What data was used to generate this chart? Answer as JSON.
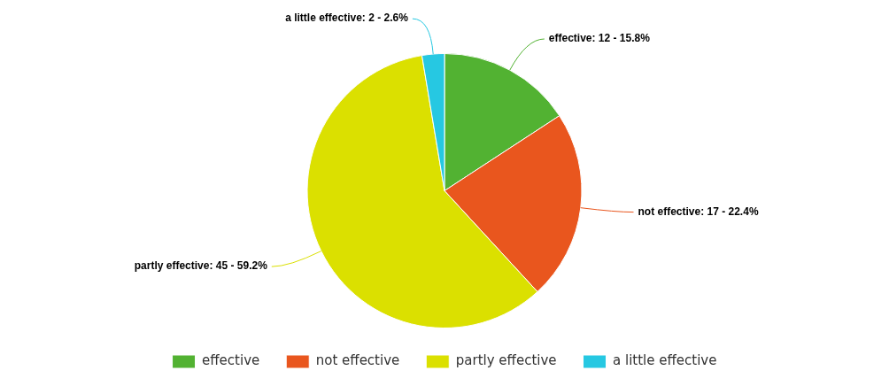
{
  "chart_data": {
    "type": "pie",
    "categories": [
      "effective",
      "not effective",
      "partly effective",
      "a little effective"
    ],
    "values": [
      12,
      17,
      45,
      2
    ],
    "colors": [
      "#52b232",
      "#e9561e",
      "#dbe000",
      "#26c8e2"
    ],
    "value_labels": [
      "effective: 12 - 15.8%",
      "not effective: 17 - 22.4%",
      "partly effective: 45 - 59.2%",
      "a little effective: 2 - 2.6%"
    ],
    "legend": "bottom"
  }
}
